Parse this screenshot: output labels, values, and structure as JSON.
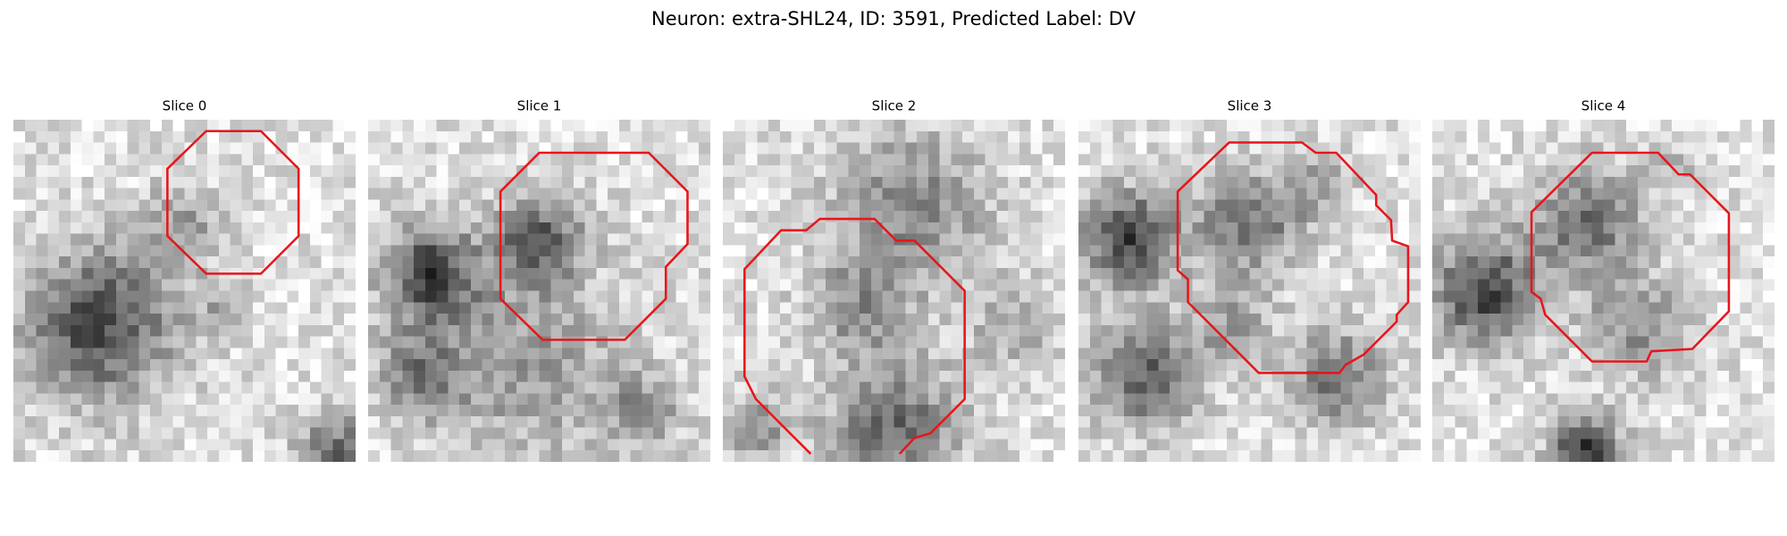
{
  "title": "Neuron: extra-SHL24, ID: 3591, Predicted Label: DV",
  "panels": [
    {
      "title": "Slice 0"
    },
    {
      "title": "Slice 1"
    },
    {
      "title": "Slice 2"
    },
    {
      "title": "Slice 3"
    },
    {
      "title": "Slice 4"
    }
  ]
}
